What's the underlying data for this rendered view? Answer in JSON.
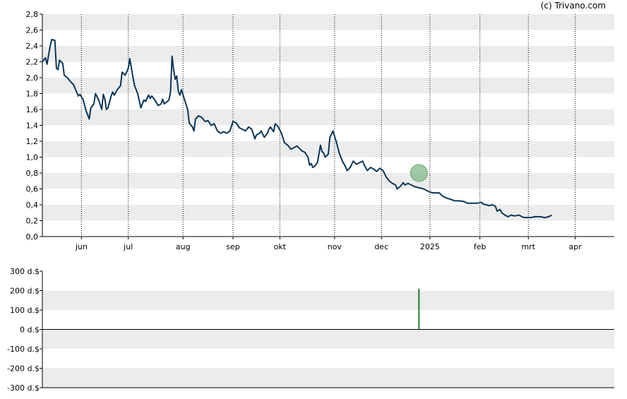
{
  "credit": "(c) Trivano.com",
  "colors": {
    "line": "#0b3656",
    "band": "#ececec",
    "grid": "#000000",
    "marker": "#7fba8a",
    "bar": "#1e7a2c"
  },
  "chart_data": [
    {
      "type": "line",
      "x_tick_labels": [
        "jun",
        "jul",
        "aug",
        "sep",
        "okt",
        "nov",
        "dec",
        "2025",
        "feb",
        "mrt",
        "apr"
      ],
      "x_tick_positions": [
        25,
        55,
        90,
        122,
        152,
        187,
        217,
        248,
        280,
        311,
        341
      ],
      "y_tick_labels": [
        "0,0",
        "0,2",
        "0,4",
        "0,6",
        "0,8",
        "1,0",
        "1,2",
        "1,4",
        "1,6",
        "1,8",
        "2,0",
        "2,2",
        "2,4",
        "2,6",
        "2,8"
      ],
      "ylim": [
        0,
        2.8
      ],
      "xlim": [
        0,
        366
      ],
      "x_unit": "days since start of plotted period",
      "series": [
        {
          "points": [
            [
              0,
              2.2
            ],
            [
              2,
              2.25
            ],
            [
              3,
              2.17
            ],
            [
              5,
              2.4
            ],
            [
              6,
              2.48
            ],
            [
              8,
              2.47
            ],
            [
              9,
              2.12
            ],
            [
              10,
              2.1
            ],
            [
              11,
              2.22
            ],
            [
              13,
              2.18
            ],
            [
              14,
              2.03
            ],
            [
              16,
              2.0
            ],
            [
              18,
              1.95
            ],
            [
              20,
              1.91
            ],
            [
              21,
              1.86
            ],
            [
              23,
              1.77
            ],
            [
              24,
              1.79
            ],
            [
              26,
              1.73
            ],
            [
              28,
              1.58
            ],
            [
              30,
              1.48
            ],
            [
              31,
              1.62
            ],
            [
              33,
              1.67
            ],
            [
              34,
              1.8
            ],
            [
              36,
              1.72
            ],
            [
              38,
              1.6
            ],
            [
              39,
              1.79
            ],
            [
              40,
              1.73
            ],
            [
              41,
              1.6
            ],
            [
              42,
              1.62
            ],
            [
              44,
              1.77
            ],
            [
              45,
              1.82
            ],
            [
              46,
              1.78
            ],
            [
              48,
              1.85
            ],
            [
              50,
              1.9
            ],
            [
              51,
              2.07
            ],
            [
              53,
              2.03
            ],
            [
              55,
              2.12
            ],
            [
              56,
              2.24
            ],
            [
              57,
              2.12
            ],
            [
              58,
              2.0
            ],
            [
              59,
              1.9
            ],
            [
              61,
              1.8
            ],
            [
              63,
              1.62
            ],
            [
              64,
              1.67
            ],
            [
              65,
              1.72
            ],
            [
              66,
              1.7
            ],
            [
              68,
              1.78
            ],
            [
              69,
              1.74
            ],
            [
              70,
              1.77
            ],
            [
              72,
              1.72
            ],
            [
              74,
              1.65
            ],
            [
              76,
              1.67
            ],
            [
              77,
              1.73
            ],
            [
              78,
              1.67
            ],
            [
              80,
              1.7
            ],
            [
              81,
              1.72
            ],
            [
              82,
              1.82
            ],
            [
              83,
              2.27
            ],
            [
              84,
              2.1
            ],
            [
              85,
              1.98
            ],
            [
              86,
              2.02
            ],
            [
              87,
              1.83
            ],
            [
              88,
              1.78
            ],
            [
              89,
              1.85
            ],
            [
              91,
              1.72
            ],
            [
              93,
              1.6
            ],
            [
              94,
              1.43
            ],
            [
              96,
              1.38
            ],
            [
              97,
              1.33
            ],
            [
              98,
              1.48
            ],
            [
              100,
              1.52
            ],
            [
              102,
              1.5
            ],
            [
              104,
              1.45
            ],
            [
              106,
              1.46
            ],
            [
              108,
              1.4
            ],
            [
              110,
              1.42
            ],
            [
              112,
              1.33
            ],
            [
              114,
              1.3
            ],
            [
              116,
              1.32
            ],
            [
              118,
              1.3
            ],
            [
              120,
              1.33
            ],
            [
              122,
              1.45
            ],
            [
              124,
              1.43
            ],
            [
              126,
              1.37
            ],
            [
              128,
              1.35
            ],
            [
              130,
              1.33
            ],
            [
              132,
              1.38
            ],
            [
              134,
              1.35
            ],
            [
              136,
              1.23
            ],
            [
              137,
              1.28
            ],
            [
              139,
              1.3
            ],
            [
              140,
              1.33
            ],
            [
              142,
              1.25
            ],
            [
              144,
              1.3
            ],
            [
              145,
              1.35
            ],
            [
              146,
              1.38
            ],
            [
              148,
              1.32
            ],
            [
              149,
              1.42
            ],
            [
              151,
              1.38
            ],
            [
              153,
              1.3
            ],
            [
              155,
              1.18
            ],
            [
              157,
              1.15
            ],
            [
              159,
              1.1
            ],
            [
              161,
              1.12
            ],
            [
              163,
              1.14
            ],
            [
              165,
              1.1
            ],
            [
              166,
              1.08
            ],
            [
              168,
              1.06
            ],
            [
              170,
              1.0
            ],
            [
              171,
              0.9
            ],
            [
              172,
              0.92
            ],
            [
              173,
              0.87
            ],
            [
              174,
              0.88
            ],
            [
              176,
              0.93
            ],
            [
              178,
              1.15
            ],
            [
              179,
              1.07
            ],
            [
              180,
              1.05
            ],
            [
              181,
              1.0
            ],
            [
              183,
              1.04
            ],
            [
              184,
              1.25
            ],
            [
              186,
              1.33
            ],
            [
              187,
              1.26
            ],
            [
              188,
              1.2
            ],
            [
              190,
              1.05
            ],
            [
              192,
              0.95
            ],
            [
              194,
              0.88
            ],
            [
              195,
              0.83
            ],
            [
              197,
              0.87
            ],
            [
              199,
              0.95
            ],
            [
              201,
              0.91
            ],
            [
              203,
              0.93
            ],
            [
              205,
              0.95
            ],
            [
              206,
              0.9
            ],
            [
              208,
              0.83
            ],
            [
              210,
              0.87
            ],
            [
              212,
              0.85
            ],
            [
              214,
              0.82
            ],
            [
              216,
              0.86
            ],
            [
              218,
              0.83
            ],
            [
              220,
              0.75
            ],
            [
              222,
              0.7
            ],
            [
              224,
              0.67
            ],
            [
              226,
              0.65
            ],
            [
              227,
              0.6
            ],
            [
              229,
              0.63
            ],
            [
              231,
              0.68
            ],
            [
              232,
              0.65
            ],
            [
              234,
              0.67
            ],
            [
              236,
              0.65
            ],
            [
              238,
              0.63
            ],
            [
              240,
              0.62
            ],
            [
              242,
              0.61
            ],
            [
              244,
              0.6
            ],
            [
              246,
              0.58
            ],
            [
              248,
              0.56
            ],
            [
              250,
              0.55
            ],
            [
              252,
              0.55
            ],
            [
              254,
              0.55
            ],
            [
              256,
              0.51
            ],
            [
              258,
              0.49
            ],
            [
              261,
              0.47
            ],
            [
              264,
              0.45
            ],
            [
              267,
              0.45
            ],
            [
              270,
              0.44
            ],
            [
              272,
              0.42
            ],
            [
              275,
              0.42
            ],
            [
              278,
              0.42
            ],
            [
              281,
              0.43
            ],
            [
              282,
              0.41
            ],
            [
              284,
              0.4
            ],
            [
              286,
              0.39
            ],
            [
              288,
              0.4
            ],
            [
              290,
              0.38
            ],
            [
              291,
              0.32
            ],
            [
              293,
              0.34
            ],
            [
              294,
              0.3
            ],
            [
              296,
              0.27
            ],
            [
              298,
              0.25
            ],
            [
              300,
              0.27
            ],
            [
              302,
              0.26
            ],
            [
              305,
              0.27
            ],
            [
              308,
              0.24
            ],
            [
              311,
              0.24
            ],
            [
              313,
              0.24
            ],
            [
              315,
              0.25
            ],
            [
              319,
              0.25
            ],
            [
              321,
              0.24
            ],
            [
              322,
              0.24
            ],
            [
              324,
              0.25
            ],
            [
              326,
              0.27
            ]
          ]
        }
      ],
      "marker": {
        "x": 241,
        "y": 0.8
      }
    },
    {
      "type": "bar",
      "y_tick_labels": [
        "300 d.$",
        "200 d.$",
        "100 d.$",
        "0 d.$",
        "-100 d.$",
        "-200 d.$",
        "-300 d.$"
      ],
      "ylim": [
        -300,
        300
      ],
      "bars": [
        {
          "x": 241,
          "value": 210
        }
      ]
    }
  ]
}
